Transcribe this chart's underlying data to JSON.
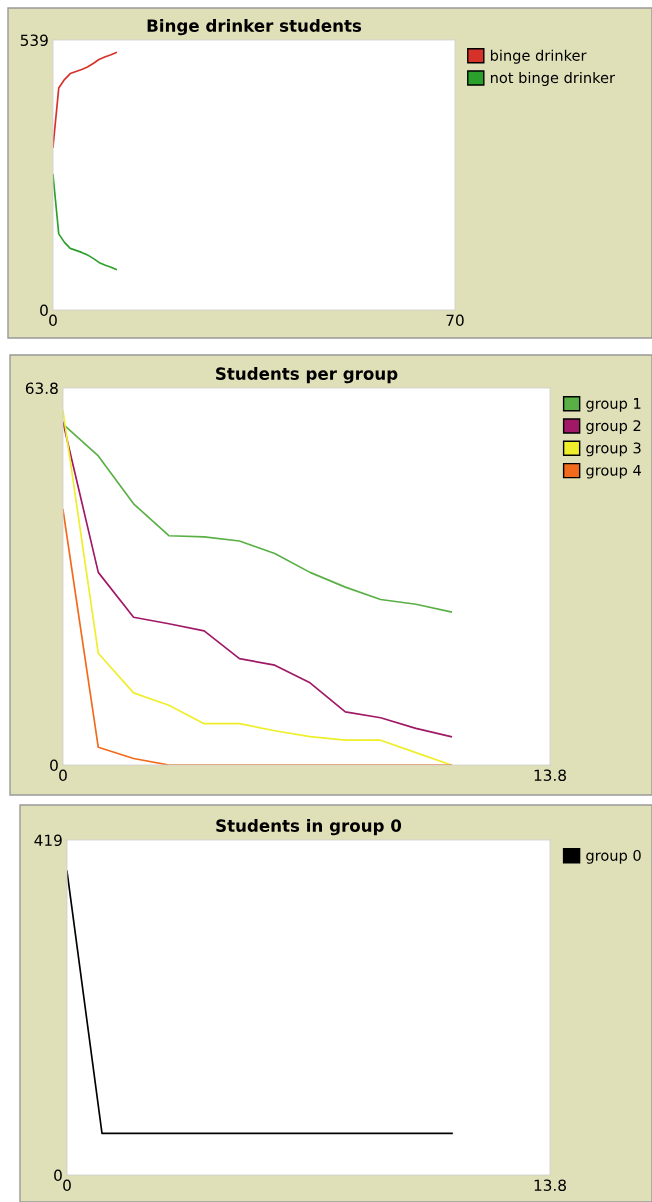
{
  "chart_data": [
    {
      "type": "line",
      "title": "Binge drinker students",
      "x": [
        0,
        1,
        2,
        3,
        4,
        5,
        6,
        7,
        8,
        9,
        10,
        11
      ],
      "xlim": [
        0,
        70
      ],
      "xticks": [
        0,
        70
      ],
      "ylim": [
        0,
        539
      ],
      "yticks": [
        0,
        539
      ],
      "grid": false,
      "legend": "right",
      "series": [
        {
          "name": "binge drinker",
          "color": "#d73229",
          "values": [
            325,
            443,
            460,
            472,
            476,
            480,
            485,
            492,
            500,
            505,
            509,
            514
          ]
        },
        {
          "name": "not binge drinker",
          "color": "#2ca02c",
          "values": [
            270,
            152,
            135,
            123,
            119,
            115,
            110,
            103,
            95,
            90,
            86,
            81
          ]
        }
      ]
    },
    {
      "type": "line",
      "title": "Students per group",
      "x": [
        0,
        1,
        2,
        3,
        4,
        5,
        6,
        7,
        8,
        9,
        10,
        11
      ],
      "xlim": [
        0,
        13.8
      ],
      "xticks": [
        0,
        13.8
      ],
      "ylim": [
        0,
        63.8
      ],
      "yticks": [
        0,
        63.8
      ],
      "grid": false,
      "legend": "right",
      "series": [
        {
          "name": "group 1",
          "color": "#59b045",
          "values": [
            57.7,
            52.3,
            44.2,
            38.8,
            38.6,
            37.9,
            35.8,
            32.6,
            30.1,
            28.0,
            27.2,
            25.9
          ]
        },
        {
          "name": "group 2",
          "color": "#a01866",
          "values": [
            58.0,
            32.6,
            25.0,
            23.9,
            22.7,
            18.0,
            16.9,
            13.9,
            9.0,
            8.0,
            6.2,
            4.8
          ]
        },
        {
          "name": "group 3",
          "color": "#eeee2a",
          "values": [
            59.9,
            18.9,
            12.2,
            10.1,
            7.0,
            7.0,
            5.8,
            4.8,
            4.2,
            4.2,
            2.1,
            0
          ]
        },
        {
          "name": "group 4",
          "color": "#f26a1b",
          "values": [
            43.2,
            3.0,
            1.1,
            0,
            0,
            0,
            0,
            0,
            0,
            0,
            0,
            0
          ]
        }
      ]
    },
    {
      "type": "line",
      "title": "Students in group 0",
      "x": [
        0,
        1,
        2,
        3,
        4,
        5,
        6,
        7,
        8,
        9,
        10,
        11
      ],
      "xlim": [
        0,
        13.8
      ],
      "xticks": [
        0,
        13.8
      ],
      "ylim": [
        0,
        419
      ],
      "yticks": [
        0,
        419
      ],
      "grid": false,
      "legend": "right",
      "series": [
        {
          "name": "group 0",
          "color": "#000000",
          "values": [
            380,
            52,
            52,
            52,
            52,
            52,
            52,
            52,
            52,
            52,
            52,
            52
          ]
        }
      ]
    }
  ]
}
